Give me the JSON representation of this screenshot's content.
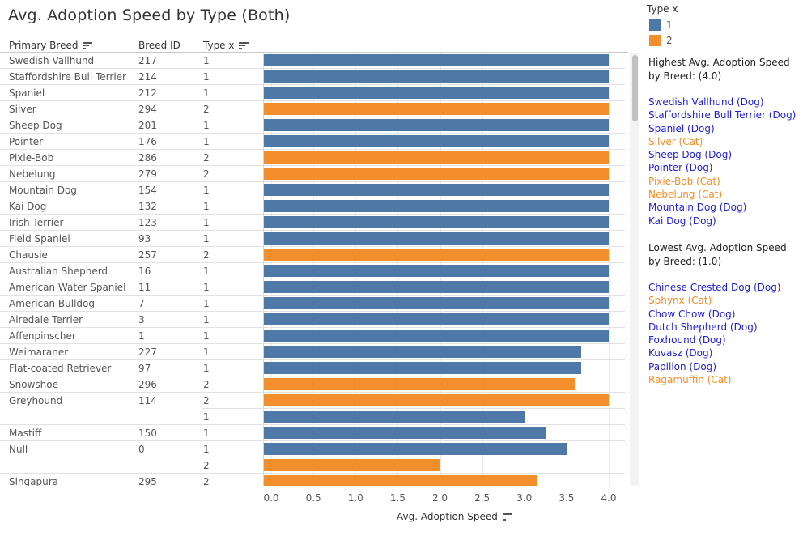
{
  "title": "Avg. Adoption Speed by Type (Both)",
  "columns": {
    "breed": "Primary Breed",
    "id": "Breed ID",
    "type": "Type x"
  },
  "colors": {
    "type1": "#4e79a7",
    "type2": "#f28e2b",
    "dogLink": "#1f1fd8",
    "catLink": "#f28e2b"
  },
  "legend": {
    "title": "Type x",
    "items": [
      {
        "label": "1",
        "color": "#4e79a7"
      },
      {
        "label": "2",
        "color": "#f28e2b"
      }
    ]
  },
  "chart_data": {
    "type": "bar",
    "orientation": "horizontal",
    "xlabel": "Avg. Adoption Speed",
    "xlim": [
      0,
      4.2
    ],
    "xticks": [
      "0.0",
      "0.5",
      "1.0",
      "1.5",
      "2.0",
      "2.5",
      "3.0",
      "3.5",
      "4.0"
    ],
    "grid": true,
    "rows": [
      {
        "breed": "Swedish Vallhund",
        "id": "217",
        "type": "1",
        "value": 4.0
      },
      {
        "breed": "Staffordshire Bull Terrier",
        "id": "214",
        "type": "1",
        "value": 4.0
      },
      {
        "breed": "Spaniel",
        "id": "212",
        "type": "1",
        "value": 4.0
      },
      {
        "breed": "Silver",
        "id": "294",
        "type": "2",
        "value": 4.0
      },
      {
        "breed": "Sheep Dog",
        "id": "201",
        "type": "1",
        "value": 4.0
      },
      {
        "breed": "Pointer",
        "id": "176",
        "type": "1",
        "value": 4.0
      },
      {
        "breed": "Pixie-Bob",
        "id": "286",
        "type": "2",
        "value": 4.0
      },
      {
        "breed": "Nebelung",
        "id": "279",
        "type": "2",
        "value": 4.0
      },
      {
        "breed": "Mountain Dog",
        "id": "154",
        "type": "1",
        "value": 4.0
      },
      {
        "breed": "Kai Dog",
        "id": "132",
        "type": "1",
        "value": 4.0
      },
      {
        "breed": "Irish Terrier",
        "id": "123",
        "type": "1",
        "value": 4.0
      },
      {
        "breed": "Field Spaniel",
        "id": "93",
        "type": "1",
        "value": 4.0
      },
      {
        "breed": "Chausie",
        "id": "257",
        "type": "2",
        "value": 4.0
      },
      {
        "breed": "Australian Shepherd",
        "id": "16",
        "type": "1",
        "value": 4.0
      },
      {
        "breed": "American Water Spaniel",
        "id": "11",
        "type": "1",
        "value": 4.0
      },
      {
        "breed": "American Bulldog",
        "id": "7",
        "type": "1",
        "value": 4.0
      },
      {
        "breed": "Airedale Terrier",
        "id": "3",
        "type": "1",
        "value": 4.0
      },
      {
        "breed": "Affenpinscher",
        "id": "1",
        "type": "1",
        "value": 4.0
      },
      {
        "breed": "Weimaraner",
        "id": "227",
        "type": "1",
        "value": 3.67
      },
      {
        "breed": "Flat-coated Retriever",
        "id": "97",
        "type": "1",
        "value": 3.67
      },
      {
        "breed": "Snowshoe",
        "id": "296",
        "type": "2",
        "value": 3.6
      },
      {
        "breed": "Greyhound",
        "id": "114",
        "type": "2",
        "value": 4.0
      },
      {
        "breed": "",
        "id": "",
        "type": "1",
        "value": 3.0
      },
      {
        "breed": "Mastiff",
        "id": "150",
        "type": "1",
        "value": 3.25
      },
      {
        "breed": "Null",
        "id": "0",
        "type": "1",
        "value": 3.5
      },
      {
        "breed": "",
        "id": "",
        "type": "2",
        "value": 2.0
      },
      {
        "breed": "Singapura",
        "id": "295",
        "type": "2",
        "value": 3.15
      }
    ]
  },
  "side": {
    "highest_title": "Highest Avg. Adoption Speed by Breed: (4.0)",
    "highest": [
      {
        "text": "Swedish Vallhund (Dog)",
        "kind": "dog"
      },
      {
        "text": "Staffordshire Bull Terrier (Dog)",
        "kind": "dog"
      },
      {
        "text": "Spaniel (Dog)",
        "kind": "dog"
      },
      {
        "text": "Silver (Cat)",
        "kind": "cat"
      },
      {
        "text": "Sheep Dog (Dog)",
        "kind": "dog"
      },
      {
        "text": "Pointer (Dog)",
        "kind": "dog"
      },
      {
        "text": "Pixie-Bob (Cat)",
        "kind": "cat"
      },
      {
        "text": "Nebelung (Cat)",
        "kind": "cat"
      },
      {
        "text": "Mountain Dog (Dog)",
        "kind": "dog"
      },
      {
        "text": "Kai Dog (Dog)",
        "kind": "dog"
      }
    ],
    "lowest_title": "Lowest Avg. Adoption Speed by Breed: (1.0)",
    "lowest": [
      {
        "text": "Chinese Crested Dog (Dog)",
        "kind": "dog"
      },
      {
        "text": "Sphynx (Cat)",
        "kind": "cat"
      },
      {
        "text": "Chow Chow (Dog)",
        "kind": "dog"
      },
      {
        "text": "Dutch Shepherd (Dog)",
        "kind": "dog"
      },
      {
        "text": "Foxhound (Dog)",
        "kind": "dog"
      },
      {
        "text": "Kuvasz (Dog)",
        "kind": "dog"
      },
      {
        "text": "Papillon (Dog)",
        "kind": "dog"
      },
      {
        "text": "Ragamuffin (Cat)",
        "kind": "cat"
      }
    ]
  }
}
